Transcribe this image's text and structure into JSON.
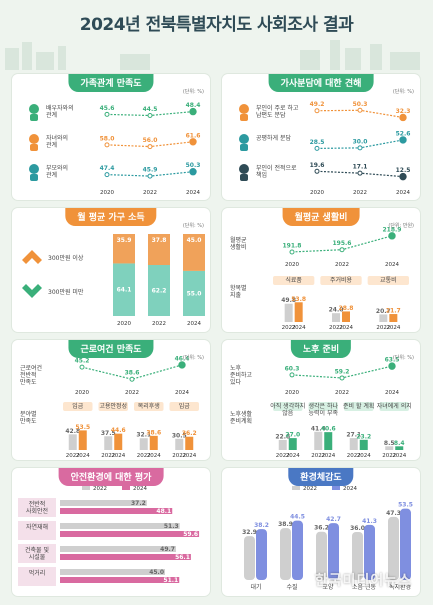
{
  "title": "2024년 전북특별자치도 사회조사 결과",
  "colors": {
    "green": "#3aaf7a",
    "orange": "#f0923a",
    "pink": "#d96aa0",
    "blue": "#4a78c4",
    "teal": "#2c9aa0"
  },
  "chart_data": [
    {
      "id": "family",
      "type": "line",
      "title": "가족관계 만족도",
      "unit": "(단위: %)",
      "x": [
        "2020",
        "2022",
        "2024"
      ],
      "series": [
        {
          "name": "배우자와의 관계",
          "values": [
            45.6,
            44.5,
            48.4
          ],
          "color": "#3aaf7a"
        },
        {
          "name": "자녀와의 관계",
          "values": [
            58.0,
            56.0,
            61.6
          ],
          "color": "#f0923a"
        },
        {
          "name": "부모와의 관계",
          "values": [
            47.4,
            45.9,
            50.3
          ],
          "color": "#2c9aa0"
        }
      ]
    },
    {
      "id": "housework",
      "type": "line",
      "title": "가사분담에 대한 견해",
      "unit": "(단위: %)",
      "x": [
        "2020",
        "2022",
        "2024"
      ],
      "series": [
        {
          "name": "부인이 주로 하고 남편도 분담",
          "values": [
            49.2,
            50.3,
            32.3
          ],
          "color": "#f0923a"
        },
        {
          "name": "공평하게 분담",
          "values": [
            28.5,
            30.0,
            52.6
          ],
          "color": "#2c9aa0"
        },
        {
          "name": "부인이 전적으로 책임",
          "values": [
            19.6,
            17.1,
            12.5
          ],
          "color": "#2f4b56"
        }
      ]
    },
    {
      "id": "income",
      "type": "bar",
      "title": "월 평균 가구 소득",
      "unit": "(단위: %)",
      "categories": [
        "2020",
        "2022",
        "2024"
      ],
      "series": [
        {
          "name": "300만원 이상",
          "values": [
            35.9,
            37.8,
            45.0
          ],
          "color": "#f0a25a"
        },
        {
          "name": "300만원 미만",
          "values": [
            64.1,
            62.2,
            55.0
          ],
          "color": "#7fd1bd"
        }
      ]
    },
    {
      "id": "living",
      "type": "line",
      "title": "월평균 생활비",
      "unit": "(단위: 만원)",
      "row_label": "월평균 생활비",
      "x": [
        "2020",
        "2022",
        "2024"
      ],
      "values": [
        191.8,
        195.6,
        218.9
      ],
      "sub_label": "항목별 지출",
      "groups": [
        {
          "name": "식료품",
          "x": [
            "2022",
            "2024"
          ],
          "values": [
            49.8,
            53.8
          ]
        },
        {
          "name": "주거비용",
          "x": [
            "2022",
            "2024"
          ],
          "values": [
            24.0,
            28.8
          ]
        },
        {
          "name": "교통비",
          "x": [
            "2022",
            "2024"
          ],
          "values": [
            20.7,
            21.7
          ]
        }
      ]
    },
    {
      "id": "work",
      "type": "line",
      "title": "근로여건 만족도",
      "unit": "(단위: %)",
      "row_label": "근로여건 전반적 만족도",
      "x": [
        "2020",
        "2022",
        "2024"
      ],
      "values": [
        45.2,
        38.6,
        46.4
      ],
      "sub_label": "분야별 만족도",
      "groups": [
        {
          "name": "임금",
          "x": [
            "2022",
            "2024"
          ],
          "values": [
            42.8,
            53.5
          ]
        },
        {
          "name": "고용안정성",
          "x": [
            "2022",
            "2024"
          ],
          "values": [
            37.5,
            44.6
          ]
        },
        {
          "name": "복리후생",
          "x": [
            "2022",
            "2024"
          ],
          "values": [
            32.1,
            38.6
          ]
        },
        {
          "name": "임금",
          "x": [
            "2022",
            "2024"
          ],
          "values": [
            30.5,
            36.2
          ]
        }
      ]
    },
    {
      "id": "retire",
      "type": "line",
      "title": "노후 준비",
      "unit": "(단위: %)",
      "row_label": "노후 준비하고 있다",
      "x": [
        "2020",
        "2022",
        "2024"
      ],
      "values": [
        60.3,
        59.2,
        63.5
      ],
      "sub_label": "노후생활 준비계획",
      "groups": [
        {
          "name": "아직 생각하지 않음",
          "x": [
            "2022",
            "2024"
          ],
          "values": [
            22.8,
            27.0
          ]
        },
        {
          "name": "생각은 하나 능력이 부족",
          "x": [
            "2022",
            "2024"
          ],
          "values": [
            41.4,
            40.6
          ]
        },
        {
          "name": "준비 할 계획",
          "x": [
            "2022",
            "2024"
          ],
          "values": [
            27.1,
            23.2
          ]
        },
        {
          "name": "자녀에게 의지",
          "x": [
            "2022",
            "2024"
          ],
          "values": [
            8.5,
            8.4
          ]
        }
      ]
    },
    {
      "id": "safety",
      "type": "bar",
      "title": "안전환경에 대한 평가",
      "legend": [
        "2022",
        "2024"
      ],
      "categories": [
        "전반적 사회안전",
        "자연재해",
        "건축물 및 시설물",
        "먹거리"
      ],
      "series": [
        {
          "name": "2022",
          "values": [
            37.2,
            51.3,
            49.7,
            45.0
          ],
          "color": "#cfcfcf"
        },
        {
          "name": "2024",
          "values": [
            48.1,
            59.6,
            56.1,
            51.1
          ],
          "color": "#d96aa0"
        }
      ]
    },
    {
      "id": "env",
      "type": "bar",
      "title": "환경체감도",
      "legend": [
        "2022",
        "2024"
      ],
      "categories": [
        "대기",
        "수질",
        "토양",
        "소음·진동",
        "녹지환경"
      ],
      "series": [
        {
          "name": "2022",
          "values": [
            32.9,
            38.9,
            36.2,
            36.0,
            47.3
          ],
          "color": "#cfcfcf"
        },
        {
          "name": "2024",
          "values": [
            38.2,
            44.5,
            42.7,
            41.3,
            53.5
          ],
          "color": "#7f8fe0"
        }
      ]
    }
  ],
  "watermark": "한국미디어뉴스"
}
